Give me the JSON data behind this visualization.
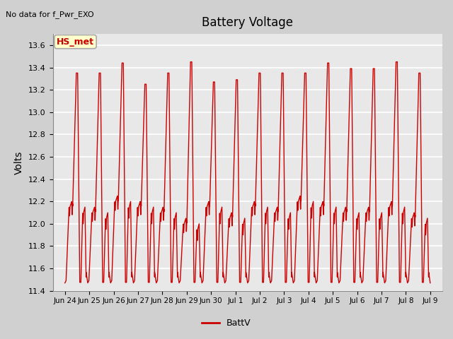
{
  "title": "Battery Voltage",
  "no_data_label": "No data for f_Pwr_EXO",
  "ylabel": "Volts",
  "legend_label": "BattV",
  "legend_line_color": "#cc0000",
  "line_color": "#cc0000",
  "line_width": 1.0,
  "ylim": [
    11.4,
    13.7
  ],
  "yticks": [
    11.4,
    11.6,
    11.8,
    12.0,
    12.2,
    12.4,
    12.6,
    12.8,
    13.0,
    13.2,
    13.4,
    13.6
  ],
  "fig_bg_color": "#d0d0d0",
  "plot_bg_color": "#e8e8e8",
  "grid_color": "#ffffff",
  "hs_met_label": "HS_met",
  "hs_met_box_color": "#ffffcc",
  "hs_met_text_color": "#cc0000",
  "hs_met_border_color": "#aaaaaa",
  "tick_dates": [
    "Jun 24",
    "Jun 25",
    "Jun 26",
    "Jun 27",
    "Jun 28",
    "Jun 29",
    "Jun 30",
    "Jul 1",
    "Jul 2",
    "Jul 3",
    "Jul 4",
    "Jul 5",
    "Jul 6",
    "Jul 7",
    "Jul 8",
    "Jul 9"
  ],
  "num_days": 15,
  "min_v": 11.47,
  "max_v": 13.42,
  "mid_v": 12.15
}
